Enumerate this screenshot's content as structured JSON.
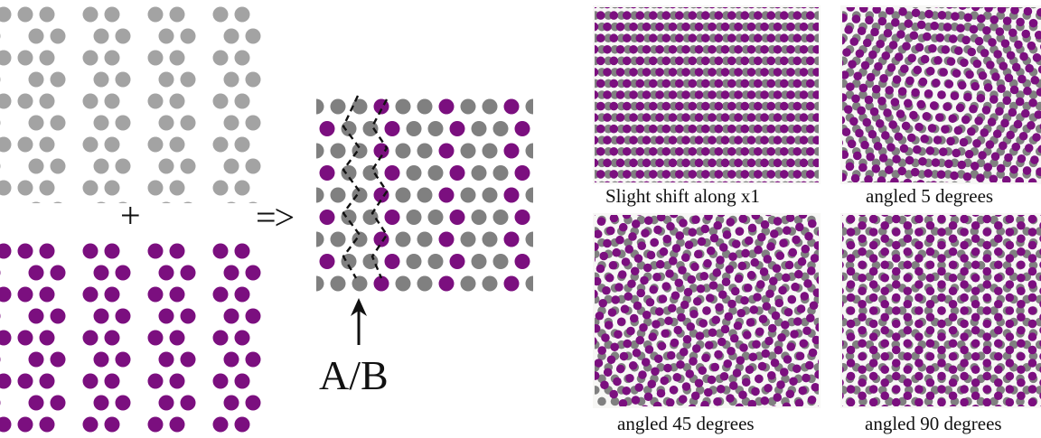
{
  "colors": {
    "layer_a": "#a3a3a3",
    "layer_b": "#7b0f7f",
    "layer_a_dark": "#808080",
    "ink": "#111111",
    "background": "#ffffff"
  },
  "operators": {
    "plus": "+",
    "arrow": "=>"
  },
  "boundary_label": "A/B",
  "panels": [
    {
      "caption": "Slight shift along x1"
    },
    {
      "caption": "angled 5 degrees"
    },
    {
      "caption": "angled 45 degrees"
    },
    {
      "caption": "angled 90 degrees"
    }
  ]
}
